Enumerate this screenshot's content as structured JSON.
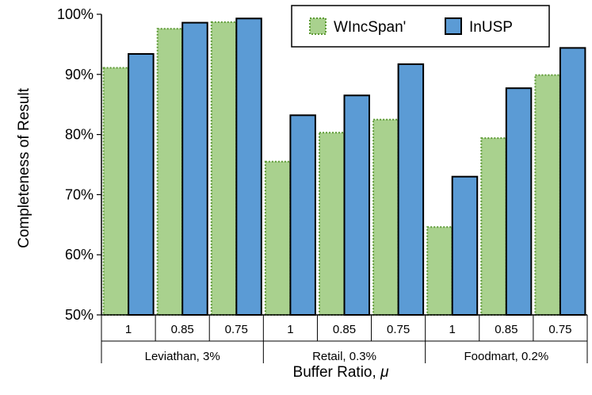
{
  "chart_data": {
    "type": "bar",
    "title": "",
    "xlabel": "Buffer Ratio, ",
    "xlabel_symbol": "μ",
    "ylabel": "Completeness of Result",
    "ylim": [
      50,
      100
    ],
    "yticks": [
      50,
      60,
      70,
      80,
      90,
      100
    ],
    "ytick_labels": [
      "50%",
      "60%",
      "70%",
      "80%",
      "90%",
      "100%"
    ],
    "categories": [
      "1",
      "0.85",
      "0.75",
      "1",
      "0.85",
      "0.75",
      "1",
      "0.85",
      "0.75"
    ],
    "groups": [
      {
        "label": "Leviathan, 3%",
        "count": 3
      },
      {
        "label": "Retail, 0.3%",
        "count": 3
      },
      {
        "label": "Foodmart, 0.2%",
        "count": 3
      }
    ],
    "series": [
      {
        "name": "WIncSpan'",
        "values": [
          91.1,
          97.6,
          98.7,
          75.5,
          80.3,
          82.5,
          64.6,
          79.4,
          89.9
        ],
        "color": "#a9d18e",
        "border": "#5e9a36"
      },
      {
        "name": "InUSP",
        "values": [
          93.4,
          98.6,
          99.3,
          83.2,
          86.5,
          91.7,
          73.0,
          87.7,
          94.4
        ],
        "color": "#5b9bd5",
        "border": "#000000"
      }
    ],
    "legend_position": "top-right",
    "grid": false
  }
}
